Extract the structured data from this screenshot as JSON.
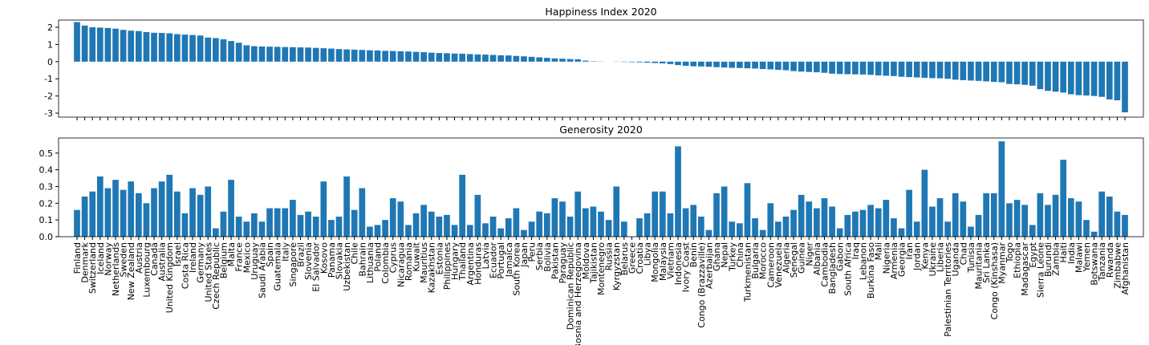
{
  "chart_data": [
    {
      "type": "bar",
      "title": "Happiness Index 2020",
      "color": "#1f77b4",
      "values": [
        2.3,
        2.1,
        2.0,
        1.98,
        1.96,
        1.92,
        1.85,
        1.8,
        1.78,
        1.72,
        1.68,
        1.67,
        1.65,
        1.6,
        1.57,
        1.55,
        1.52,
        1.4,
        1.37,
        1.3,
        1.2,
        1.1,
        0.95,
        0.9,
        0.88,
        0.87,
        0.86,
        0.85,
        0.84,
        0.83,
        0.82,
        0.8,
        0.78,
        0.76,
        0.73,
        0.71,
        0.7,
        0.68,
        0.66,
        0.65,
        0.63,
        0.62,
        0.6,
        0.59,
        0.57,
        0.55,
        0.52,
        0.5,
        0.49,
        0.47,
        0.46,
        0.44,
        0.42,
        0.41,
        0.39,
        0.37,
        0.36,
        0.33,
        0.31,
        0.28,
        0.25,
        0.22,
        0.19,
        0.17,
        0.15,
        0.14,
        0.06,
        0.02,
        0.01,
        0.0,
        -0.01,
        -0.02,
        -0.03,
        -0.04,
        -0.06,
        -0.08,
        -0.1,
        -0.14,
        -0.2,
        -0.24,
        -0.27,
        -0.28,
        -0.3,
        -0.32,
        -0.34,
        -0.36,
        -0.37,
        -0.39,
        -0.4,
        -0.43,
        -0.45,
        -0.48,
        -0.5,
        -0.55,
        -0.58,
        -0.6,
        -0.62,
        -0.65,
        -0.7,
        -0.72,
        -0.73,
        -0.74,
        -0.75,
        -0.77,
        -0.8,
        -0.82,
        -0.84,
        -0.88,
        -0.9,
        -0.92,
        -0.94,
        -0.96,
        -0.97,
        -1.0,
        -1.05,
        -1.08,
        -1.1,
        -1.12,
        -1.15,
        -1.18,
        -1.2,
        -1.3,
        -1.32,
        -1.35,
        -1.4,
        -1.6,
        -1.7,
        -1.75,
        -1.8,
        -1.9,
        -1.95,
        -1.97,
        -2.0,
        -2.05,
        -2.2,
        -2.25,
        -2.95
      ],
      "ylim": [
        -3.23,
        2.42
      ],
      "yticks": [
        -3,
        -2,
        -1,
        0,
        1,
        2
      ]
    },
    {
      "type": "bar",
      "title": "Generosity 2020",
      "color": "#1f77b4",
      "categories": [
        "Finland",
        "Denmark",
        "Switzerland",
        "Iceland",
        "Norway",
        "Netherlands",
        "Sweden",
        "New Zealand",
        "Austria",
        "Luxembourg",
        "Canada",
        "Australia",
        "United Kingdom",
        "Israel",
        "Costa Rica",
        "Ireland",
        "Germany",
        "United States",
        "Czech Republic",
        "Belgium",
        "Malta",
        "France",
        "Mexico",
        "Uruguay",
        "Saudi Arabia",
        "Spain",
        "Guatemala",
        "Italy",
        "Singapore",
        "Brazil",
        "Slovenia",
        "El Salvador",
        "Kosovo",
        "Panama",
        "Slovakia",
        "Uzbekistan",
        "Chile",
        "Bahrain",
        "Lithuania",
        "Poland",
        "Colombia",
        "Cyprus",
        "Nicaragua",
        "Romania",
        "Kuwait",
        "Mauritius",
        "Kazakhstan",
        "Estonia",
        "Philippines",
        "Hungary",
        "Thailand",
        "Argentina",
        "Honduras",
        "Latvia",
        "Ecuador",
        "Portugal",
        "Jamaica",
        "South Korea",
        "Japan",
        "Peru",
        "Serbia",
        "Bolivia",
        "Pakistan",
        "Paraguay",
        "Dominican Republic",
        "Bosnia and Herzegovina",
        "Moldova",
        "Tajikistan",
        "Montenegro",
        "Russia",
        "Kyrgyzstan",
        "Belarus",
        "Greece",
        "Croatia",
        "Libya",
        "Mongolia",
        "Malaysia",
        "Vietnam",
        "Indonesia",
        "Ivory Coast",
        "Benin",
        "Congo (Brazzaville)",
        "Azerbaijan",
        "Ghana",
        "Nepal",
        "Turkey",
        "China",
        "Turkmenistan",
        "Bulgaria",
        "Morocco",
        "Cameroon",
        "Venezuela",
        "Algeria",
        "Senegal",
        "Guinea",
        "Niger",
        "Albania",
        "Cambodia",
        "Bangladesh",
        "Gabon",
        "South Africa",
        "Iraq",
        "Lebanon",
        "Burkina Faso",
        "Mali",
        "Nigeria",
        "Armenia",
        "Georgia",
        "Iran",
        "Jordan",
        "Kenya",
        "Ukraine",
        "Liberia",
        "Palestinian Territories",
        "Uganda",
        "Chad",
        "Tunisia",
        "Mauritania",
        "Sri Lanka",
        "Congo (Kinshasa)",
        "Myanmar",
        "Togo",
        "Ethiopia",
        "Madagascar",
        "Egypt",
        "Sierra Leone",
        "Burundi",
        "Zambia",
        "Haiti",
        "India",
        "Malawi",
        "Yemen",
        "Botswana",
        "Tanzania",
        "Rwanda",
        "Zimbabwe",
        "Afghanistan"
      ],
      "values": [
        0.16,
        0.24,
        0.27,
        0.36,
        0.29,
        0.34,
        0.28,
        0.33,
        0.26,
        0.2,
        0.29,
        0.33,
        0.37,
        0.27,
        0.14,
        0.29,
        0.25,
        0.3,
        0.05,
        0.15,
        0.34,
        0.12,
        0.09,
        0.14,
        0.09,
        0.17,
        0.17,
        0.17,
        0.22,
        0.13,
        0.15,
        0.12,
        0.33,
        0.1,
        0.12,
        0.36,
        0.16,
        0.29,
        0.06,
        0.07,
        0.1,
        0.23,
        0.21,
        0.07,
        0.14,
        0.19,
        0.15,
        0.12,
        0.13,
        0.07,
        0.37,
        0.07,
        0.25,
        0.08,
        0.12,
        0.05,
        0.11,
        0.17,
        0.04,
        0.09,
        0.15,
        0.14,
        0.23,
        0.21,
        0.12,
        0.27,
        0.17,
        0.18,
        0.15,
        0.1,
        0.3,
        0.09,
        0.0,
        0.11,
        0.14,
        0.27,
        0.27,
        0.14,
        0.54,
        0.17,
        0.19,
        0.12,
        0.04,
        0.26,
        0.3,
        0.09,
        0.08,
        0.32,
        0.11,
        0.04,
        0.2,
        0.09,
        0.12,
        0.16,
        0.25,
        0.21,
        0.17,
        0.23,
        0.18,
        0.05,
        0.13,
        0.15,
        0.16,
        0.19,
        0.17,
        0.22,
        0.11,
        0.05,
        0.28,
        0.09,
        0.4,
        0.18,
        0.23,
        0.09,
        0.26,
        0.21,
        0.06,
        0.13,
        0.26,
        0.26,
        0.57,
        0.2,
        0.22,
        0.19,
        0.07,
        0.26,
        0.19,
        0.25,
        0.46,
        0.23,
        0.21,
        0.1,
        0.03,
        0.27,
        0.24,
        0.15,
        0.13
      ],
      "ylim": [
        0,
        0.59
      ],
      "yticks": [
        {
          "value": 0,
          "label": "0.0"
        },
        0.1,
        0.2,
        0.3,
        0.4,
        0.5
      ]
    }
  ]
}
